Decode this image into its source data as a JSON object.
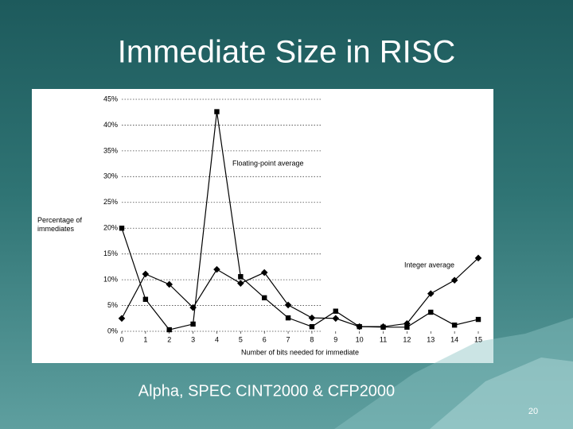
{
  "chart_data": {
    "type": "line",
    "title": "Immediate Size in RISC",
    "subtitle": "Alpha, SPEC CINT2000 & CFP2000",
    "page_number": "20",
    "x_label": "Number of bits needed for immediate",
    "y_label": "Percentage of immediates",
    "x": [
      0,
      1,
      2,
      3,
      4,
      5,
      6,
      7,
      8,
      9,
      10,
      11,
      12,
      13,
      14,
      15
    ],
    "xlim": [
      0,
      15
    ],
    "xticks": [
      0,
      1,
      2,
      3,
      4,
      5,
      6,
      7,
      8,
      9,
      10,
      11,
      12,
      13,
      14,
      15
    ],
    "ylim": [
      0,
      45
    ],
    "yticks": [
      {
        "value": 0,
        "label": "0%"
      },
      {
        "value": 5,
        "label": "5%"
      },
      {
        "value": 10,
        "label": "10%"
      },
      {
        "value": 15,
        "label": "15%"
      },
      {
        "value": 20,
        "label": "20%"
      },
      {
        "value": 25,
        "label": "25%"
      },
      {
        "value": 30,
        "label": "30%"
      },
      {
        "value": 35,
        "label": "35%"
      },
      {
        "value": 40,
        "label": "40%"
      },
      {
        "value": 45,
        "label": "45%"
      }
    ],
    "grid": true,
    "series": [
      {
        "name": "Floating-point average",
        "color": "#000000",
        "marker": "square",
        "values": [
          20.0,
          6.2,
          0.3,
          1.4,
          42.6,
          10.6,
          6.5,
          2.6,
          0.9,
          3.9,
          0.9,
          0.8,
          0.8,
          3.7,
          1.2,
          2.3
        ]
      },
      {
        "name": "Integer average",
        "color": "#000000",
        "marker": "diamond",
        "values": [
          2.5,
          11.1,
          9.1,
          4.6,
          12.0,
          9.3,
          11.4,
          5.1,
          2.6,
          2.5,
          0.9,
          0.9,
          1.5,
          7.3,
          9.9,
          14.2
        ]
      }
    ]
  }
}
